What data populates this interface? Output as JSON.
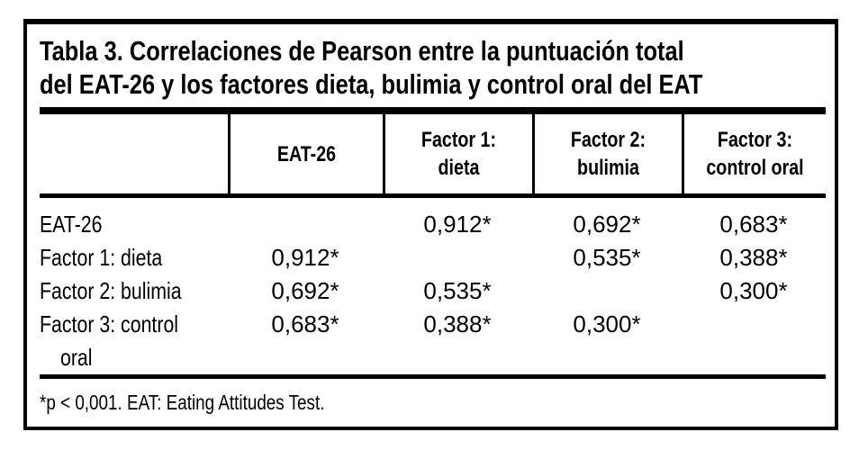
{
  "table": {
    "title_lines": [
      "Tabla 3. Correlaciones de Pearson entre la puntuación total",
      "del EAT-26 y los factores dieta, bulimia y control oral del EAT"
    ],
    "header": {
      "col0": "",
      "col1": "EAT-26",
      "col2_lines": [
        "Factor 1:",
        "dieta"
      ],
      "col3_lines": [
        "Factor 2:",
        "bulimia"
      ],
      "col4_lines": [
        "Factor 3:",
        "control oral"
      ]
    },
    "rows": [
      {
        "label": "EAT-26",
        "cells": [
          "",
          "0,912*",
          "0,692*",
          "0,683*"
        ]
      },
      {
        "label": "Factor 1: dieta",
        "cells": [
          "0,912*",
          "",
          "0,535*",
          "0,388*"
        ]
      },
      {
        "label": "Factor 2: bulimia",
        "cells": [
          "0,692*",
          "0,535*",
          "",
          "0,300*"
        ]
      },
      {
        "label_lines": [
          "Factor 3: control",
          "oral"
        ],
        "cells": [
          "0,683*",
          "0,388*",
          "0,300*",
          ""
        ]
      }
    ],
    "footnote": "*p < 0,001. EAT: Eating Attitudes Test."
  },
  "colors": {
    "text": "#000000",
    "background": "#ffffff",
    "border": "#000000"
  }
}
